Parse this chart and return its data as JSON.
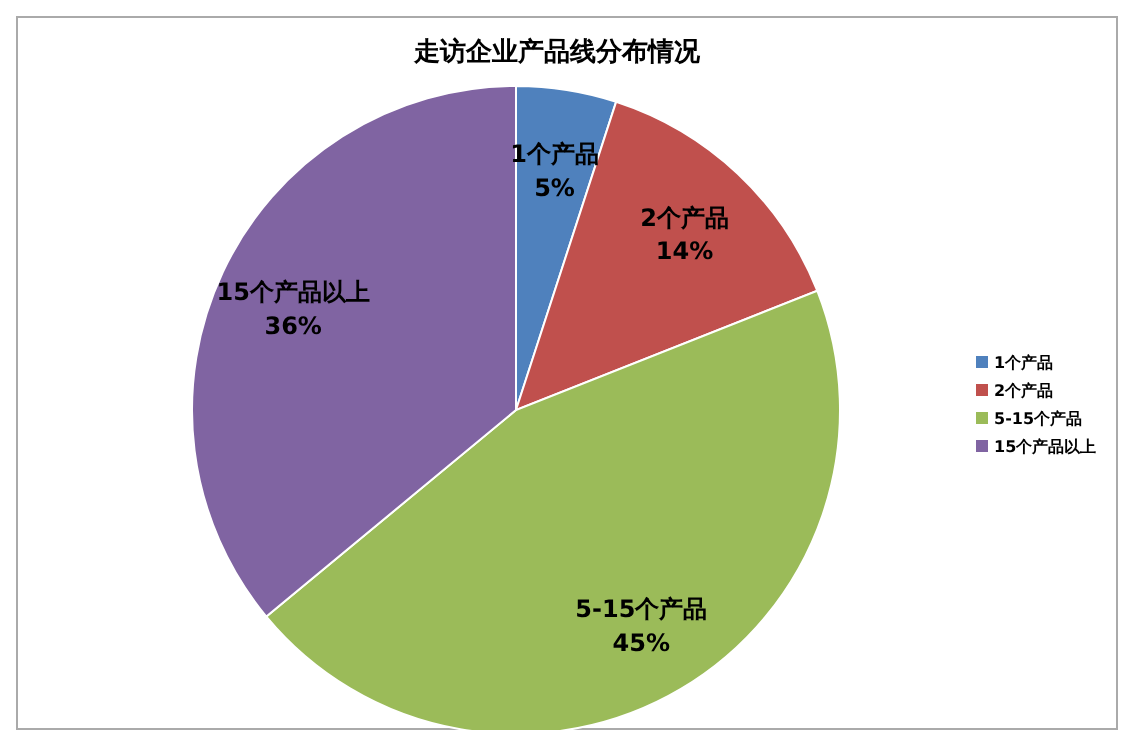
{
  "chart_data": {
    "type": "pie",
    "title": "走访企业产品线分布情况",
    "categories": [
      "1个产品",
      "2个产品",
      "5-15个产品",
      "15个产品以上"
    ],
    "values": [
      5,
      14,
      45,
      36
    ],
    "colors": [
      "#4f81bd",
      "#c0504d",
      "#9bbb59",
      "#8064a2"
    ],
    "value_labels": [
      "5%",
      "14%",
      "45%",
      "36%"
    ],
    "legend": "right"
  }
}
